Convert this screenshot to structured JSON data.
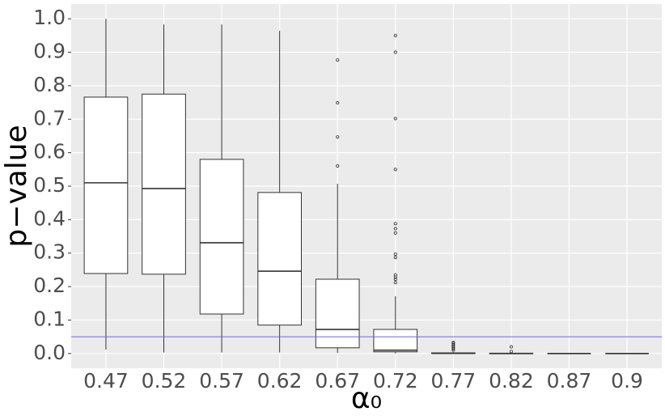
{
  "chart_data": {
    "type": "boxplot",
    "xlabel": "α₀",
    "ylabel": "p−value",
    "categories": [
      "0.47",
      "0.52",
      "0.57",
      "0.62",
      "0.67",
      "0.72",
      "0.77",
      "0.82",
      "0.87",
      "0.9"
    ],
    "whisker_low": [
      0.012,
      0.003,
      0.003,
      0.003,
      0.002,
      0.0,
      0.0,
      0.0,
      0.0,
      0.0
    ],
    "q1": [
      0.239,
      0.237,
      0.118,
      0.085,
      0.017,
      0.005,
      0.0,
      0.0,
      0.0,
      0.0
    ],
    "median": [
      0.51,
      0.493,
      0.331,
      0.246,
      0.072,
      0.01,
      0.001,
      0.0,
      0.0,
      0.0
    ],
    "q3": [
      0.766,
      0.775,
      0.58,
      0.481,
      0.222,
      0.072,
      0.002,
      0.001,
      0.0,
      0.0
    ],
    "whisker_high": [
      1.0,
      0.983,
      0.983,
      0.964,
      0.507,
      0.171,
      0.004,
      0.002,
      0.0,
      0.0
    ],
    "outliers": [
      [],
      [],
      [],
      [],
      [
        0.877,
        0.749,
        0.647,
        0.56
      ],
      [
        0.95,
        0.9,
        0.702,
        0.55,
        0.388,
        0.373,
        0.36,
        0.297,
        0.287,
        0.235,
        0.228,
        0.222,
        0.212
      ],
      [
        0.033,
        0.03,
        0.026,
        0.022,
        0.018,
        0.014,
        0.01
      ],
      [
        0.02,
        0.006
      ],
      [],
      []
    ],
    "box_fill": "#ffffff",
    "box_stroke": "#333333",
    "hline": 0.05,
    "hline_color": "#6b6bd6",
    "ylim": [
      -0.044,
      1.044
    ],
    "yticks": [
      {
        "value": 0,
        "label": "0.0"
      },
      0.1,
      0.2,
      0.3,
      0.4,
      0.5,
      0.6,
      0.7,
      0.8,
      0.9,
      {
        "value": 1,
        "label": "1.0"
      }
    ],
    "grid": true
  }
}
